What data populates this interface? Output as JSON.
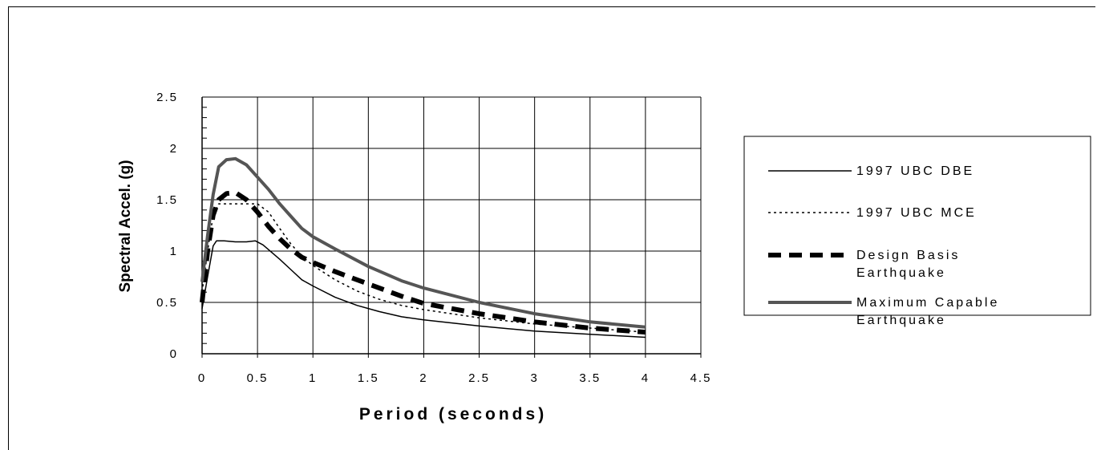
{
  "chart_data": {
    "type": "line",
    "title": "",
    "xlabel": "Period (seconds)",
    "ylabel": "Spectral Accel. (g)",
    "xlim": [
      0,
      4.5
    ],
    "ylim": [
      0,
      2.5
    ],
    "x_ticks": [
      "0",
      "0.5",
      "1",
      "1.5",
      "2",
      "2.5",
      "3",
      "3.5",
      "4",
      "4.5"
    ],
    "y_ticks": [
      "0",
      "0.5",
      "1",
      "1.5",
      "2",
      "2.5"
    ],
    "grid": true,
    "legend_position": "right",
    "series": [
      {
        "name": "1997 UBC DBE",
        "style": "thin-solid",
        "color": "#000000",
        "points": [
          [
            0,
            0.44
          ],
          [
            0.05,
            0.75
          ],
          [
            0.1,
            1.05
          ],
          [
            0.13,
            1.1
          ],
          [
            0.2,
            1.1
          ],
          [
            0.3,
            1.09
          ],
          [
            0.4,
            1.09
          ],
          [
            0.48,
            1.1
          ],
          [
            0.55,
            1.06
          ],
          [
            0.7,
            0.92
          ],
          [
            0.8,
            0.82
          ],
          [
            0.9,
            0.72
          ],
          [
            1.0,
            0.66
          ],
          [
            1.2,
            0.55
          ],
          [
            1.4,
            0.47
          ],
          [
            1.6,
            0.41
          ],
          [
            1.8,
            0.36
          ],
          [
            2.0,
            0.33
          ],
          [
            2.5,
            0.27
          ],
          [
            3.0,
            0.22
          ],
          [
            3.5,
            0.19
          ],
          [
            4.0,
            0.16
          ]
        ]
      },
      {
        "name": "1997 UBC MCE",
        "style": "dotted",
        "color": "#000000",
        "points": [
          [
            0,
            0.6
          ],
          [
            0.05,
            1.0
          ],
          [
            0.1,
            1.35
          ],
          [
            0.15,
            1.46
          ],
          [
            0.3,
            1.46
          ],
          [
            0.5,
            1.46
          ],
          [
            0.6,
            1.38
          ],
          [
            0.7,
            1.22
          ],
          [
            0.8,
            1.07
          ],
          [
            0.9,
            0.95
          ],
          [
            1.0,
            0.86
          ],
          [
            1.2,
            0.72
          ],
          [
            1.4,
            0.61
          ],
          [
            1.6,
            0.53
          ],
          [
            1.8,
            0.47
          ],
          [
            2.0,
            0.43
          ],
          [
            2.5,
            0.35
          ],
          [
            3.0,
            0.29
          ],
          [
            3.5,
            0.25
          ],
          [
            4.0,
            0.21
          ]
        ]
      },
      {
        "name": "Design Basis Earthquake",
        "style": "thick-dashed",
        "color": "#000000",
        "points": [
          [
            0,
            0.5
          ],
          [
            0.05,
            1.0
          ],
          [
            0.1,
            1.35
          ],
          [
            0.15,
            1.5
          ],
          [
            0.22,
            1.56
          ],
          [
            0.3,
            1.57
          ],
          [
            0.4,
            1.5
          ],
          [
            0.5,
            1.38
          ],
          [
            0.6,
            1.24
          ],
          [
            0.7,
            1.12
          ],
          [
            0.8,
            1.02
          ],
          [
            0.9,
            0.94
          ],
          [
            1.0,
            0.89
          ],
          [
            1.2,
            0.8
          ],
          [
            1.5,
            0.68
          ],
          [
            1.8,
            0.56
          ],
          [
            2.0,
            0.49
          ],
          [
            2.5,
            0.39
          ],
          [
            3.0,
            0.31
          ],
          [
            3.5,
            0.25
          ],
          [
            4.0,
            0.21
          ]
        ]
      },
      {
        "name": "Maximum Capable Earthquake",
        "style": "thick-solid",
        "color": "#555555",
        "points": [
          [
            0,
            0.7
          ],
          [
            0.05,
            1.15
          ],
          [
            0.1,
            1.55
          ],
          [
            0.15,
            1.82
          ],
          [
            0.22,
            1.89
          ],
          [
            0.3,
            1.9
          ],
          [
            0.4,
            1.84
          ],
          [
            0.5,
            1.72
          ],
          [
            0.6,
            1.6
          ],
          [
            0.7,
            1.46
          ],
          [
            0.8,
            1.34
          ],
          [
            0.9,
            1.22
          ],
          [
            1.0,
            1.14
          ],
          [
            1.2,
            1.02
          ],
          [
            1.5,
            0.85
          ],
          [
            1.8,
            0.71
          ],
          [
            2.0,
            0.64
          ],
          [
            2.5,
            0.5
          ],
          [
            3.0,
            0.39
          ],
          [
            3.5,
            0.31
          ],
          [
            4.0,
            0.26
          ]
        ]
      }
    ],
    "legend": [
      {
        "line1": "1997 UBC DBE",
        "line2": ""
      },
      {
        "line1": "1997 UBC MCE",
        "line2": ""
      },
      {
        "line1": "Design Basis",
        "line2": "Earthquake"
      },
      {
        "line1": "Maximum Capable",
        "line2": "Earthquake"
      }
    ]
  }
}
